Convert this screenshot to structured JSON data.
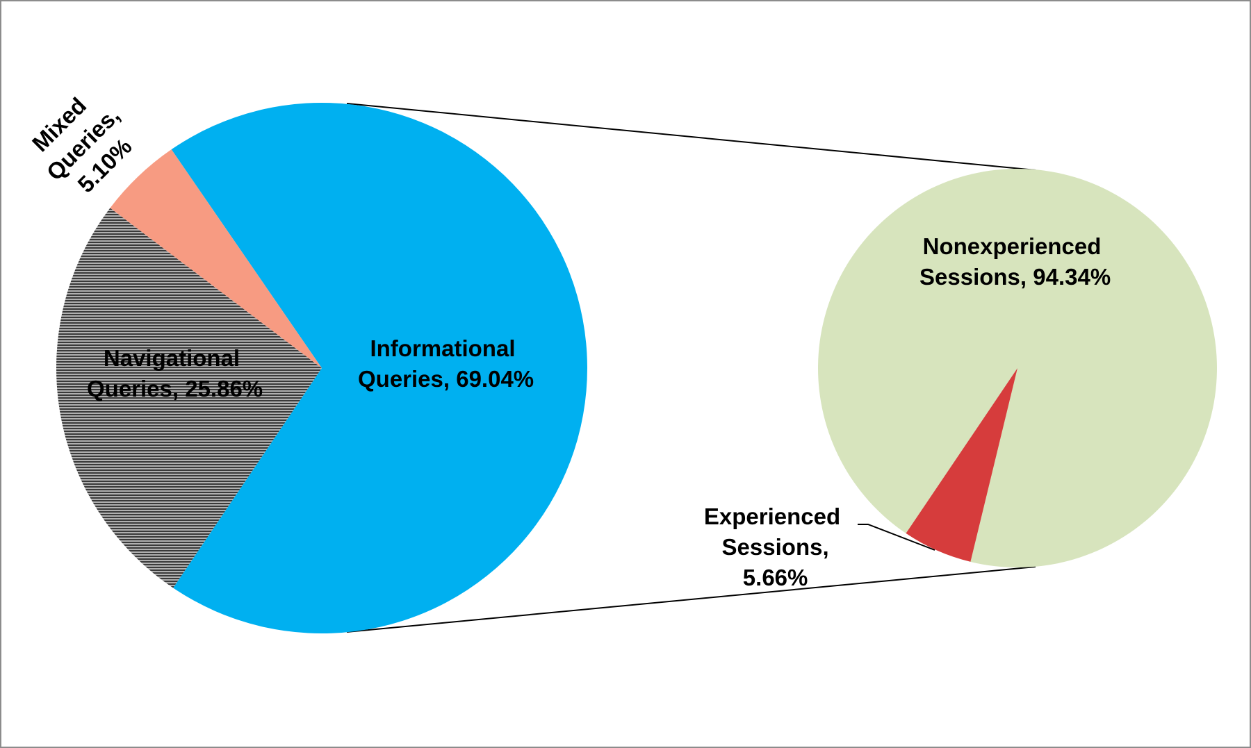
{
  "chart_data": [
    {
      "type": "pie",
      "labels": [
        "Informational Queries, 69.04%",
        "Navigational Queries, 25.86%",
        "Mixed Queries, 5.10%"
      ],
      "values": [
        69.04,
        25.86,
        5.1
      ],
      "colors": [
        "#00b0f0",
        "#7f7f7f",
        "#f79b82"
      ]
    },
    {
      "type": "pie",
      "labels": [
        "Nonexperienced Sessions, 94.34%",
        "Experienced Sessions, 5.66%"
      ],
      "values": [
        94.34,
        5.66
      ],
      "colors": [
        "#d7e4bd",
        "#d63c3c"
      ]
    }
  ]
}
